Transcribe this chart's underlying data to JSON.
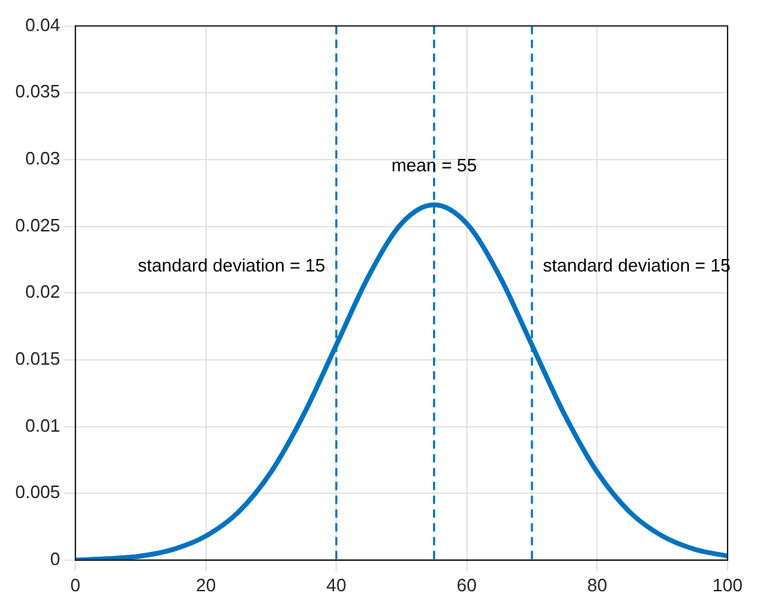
{
  "chart_data": {
    "type": "line",
    "x": [
      0,
      5,
      10,
      15,
      20,
      25,
      30,
      35,
      40,
      45,
      50,
      55,
      60,
      65,
      70,
      75,
      80,
      85,
      90,
      95,
      100
    ],
    "series": [
      {
        "color": "#0072bd",
        "values": [
          0,
          0.0001,
          0.0003,
          0.0008,
          0.0018,
          0.0036,
          0.0066,
          0.0109,
          0.0161,
          0.0213,
          0.0252,
          0.0266,
          0.0252,
          0.0213,
          0.0161,
          0.0109,
          0.0066,
          0.0036,
          0.0018,
          0.0008,
          0.0003
        ]
      }
    ],
    "xlim": [
      0,
      100
    ],
    "xticks": [
      0,
      20,
      40,
      60,
      80,
      100
    ],
    "ylim": [
      0,
      0.04
    ],
    "yticks": [
      0,
      0.005,
      0.01,
      0.015,
      0.02,
      0.025,
      0.03,
      0.035,
      0.04
    ],
    "grid": true,
    "marker": "none",
    "line_style": "solid",
    "ref_lines": [
      {
        "axis": "x",
        "value": 40,
        "color": "#0072bd",
        "line_style": "dashed"
      },
      {
        "axis": "x",
        "value": 55,
        "color": "#0072bd",
        "line_style": "dashed"
      },
      {
        "axis": "x",
        "value": 70,
        "color": "#0072bd",
        "line_style": "dashed"
      }
    ],
    "annotations": [
      {
        "text": "mean = 55",
        "x": 55,
        "y": 0.0295
      },
      "standard deviation = 15",
      "standard deviation = 15"
    ]
  }
}
